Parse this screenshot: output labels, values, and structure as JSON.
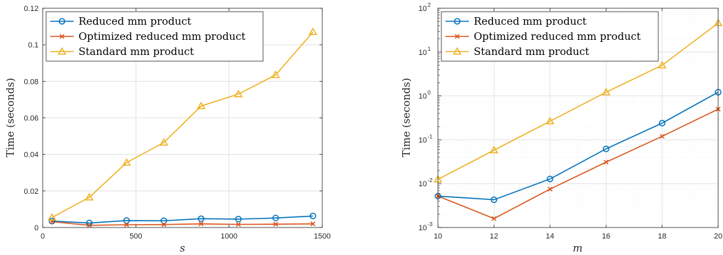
{
  "chart_data": [
    {
      "type": "line",
      "xlabel": "s",
      "ylabel": "Time (seconds)",
      "xlim": [
        0,
        1500
      ],
      "ylim": [
        0,
        0.12
      ],
      "xticks": [
        0,
        500,
        1000,
        1500
      ],
      "yticks": [
        0,
        0.02,
        0.04,
        0.06,
        0.08,
        0.1,
        0.12
      ],
      "xtick_labels": [
        "0",
        "500",
        "1000",
        "1500"
      ],
      "ytick_labels": [
        "0",
        "0.02",
        "0.04",
        "0.06",
        "0.08",
        "0.1",
        "0.12"
      ],
      "grid": true,
      "legend_position": "top-left",
      "x": [
        50,
        250,
        450,
        650,
        850,
        1050,
        1250,
        1450
      ],
      "series": [
        {
          "name": "Reduced mm product",
          "color": "#0072BD",
          "marker": "circle",
          "values": [
            0.0035,
            0.0025,
            0.0038,
            0.0037,
            0.0048,
            0.0046,
            0.0052,
            0.0063
          ]
        },
        {
          "name": "Optimized reduced mm product",
          "color": "#D95319",
          "marker": "x",
          "values": [
            0.0032,
            0.0012,
            0.0015,
            0.0016,
            0.002,
            0.0017,
            0.0018,
            0.002
          ]
        },
        {
          "name": "Standard mm product",
          "color": "#EDB120",
          "marker": "triangle",
          "values": [
            0.0055,
            0.0165,
            0.0355,
            0.0465,
            0.0665,
            0.073,
            0.0835,
            0.107
          ]
        }
      ]
    },
    {
      "type": "line",
      "xlabel": "m",
      "ylabel": "Time (seconds)",
      "xlim": [
        10,
        20
      ],
      "ylim": [
        0.001,
        100
      ],
      "yscale": "log",
      "xticks": [
        10,
        12,
        14,
        16,
        18,
        20
      ],
      "xtick_labels": [
        "10",
        "12",
        "14",
        "16",
        "18",
        "20"
      ],
      "ytick_exponents": [
        "-3",
        "-2",
        "-1",
        "0",
        "1",
        "2"
      ],
      "ytick_base": "10",
      "grid": true,
      "minor_grid": true,
      "legend_position": "top-left",
      "x": [
        10,
        12,
        14,
        16,
        18,
        20
      ],
      "series": [
        {
          "name": "Reduced mm product",
          "color": "#0072BD",
          "marker": "circle",
          "values": [
            0.0052,
            0.0043,
            0.0128,
            0.062,
            0.24,
            1.22
          ]
        },
        {
          "name": "Optimized reduced mm product",
          "color": "#D95319",
          "marker": "x",
          "values": [
            0.0052,
            0.0016,
            0.0075,
            0.031,
            0.12,
            0.5
          ]
        },
        {
          "name": "Standard mm product",
          "color": "#EDB120",
          "marker": "triangle",
          "values": [
            0.0125,
            0.058,
            0.265,
            1.22,
            5.0,
            46
          ]
        }
      ]
    }
  ]
}
